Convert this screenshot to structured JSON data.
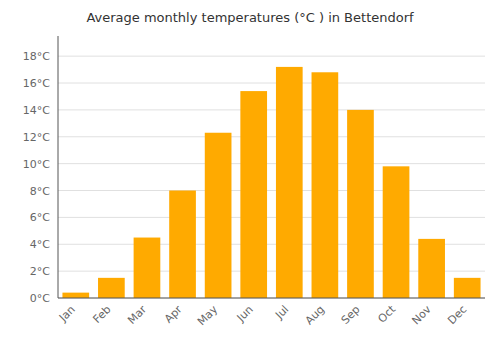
{
  "chart_data": {
    "type": "bar",
    "title": "Average monthly temperatures (°C ) in Bettendorf",
    "categories": [
      "Jan",
      "Feb",
      "Mar",
      "Apr",
      "May",
      "Jun",
      "Jul",
      "Aug",
      "Sep",
      "Oct",
      "Nov",
      "Dec"
    ],
    "values": [
      0.4,
      1.5,
      4.5,
      8.0,
      12.3,
      15.4,
      17.2,
      16.8,
      14.0,
      9.8,
      4.4,
      1.5
    ],
    "color": "#FFAA00",
    "ylim": [
      0,
      19.5
    ],
    "yticks": [
      {
        "value": 0,
        "label": "0°C"
      },
      {
        "value": 2,
        "label": "2°C"
      },
      {
        "value": 4,
        "label": "4°C"
      },
      {
        "value": 6,
        "label": "6°C"
      },
      {
        "value": 8,
        "label": "8°C"
      },
      {
        "value": 10,
        "label": "10°C"
      },
      {
        "value": 12,
        "label": "12°C"
      },
      {
        "value": 14,
        "label": "14°C"
      },
      {
        "value": 16,
        "label": "16°C"
      },
      {
        "value": 18,
        "label": "18°C"
      }
    ],
    "grid": true
  }
}
